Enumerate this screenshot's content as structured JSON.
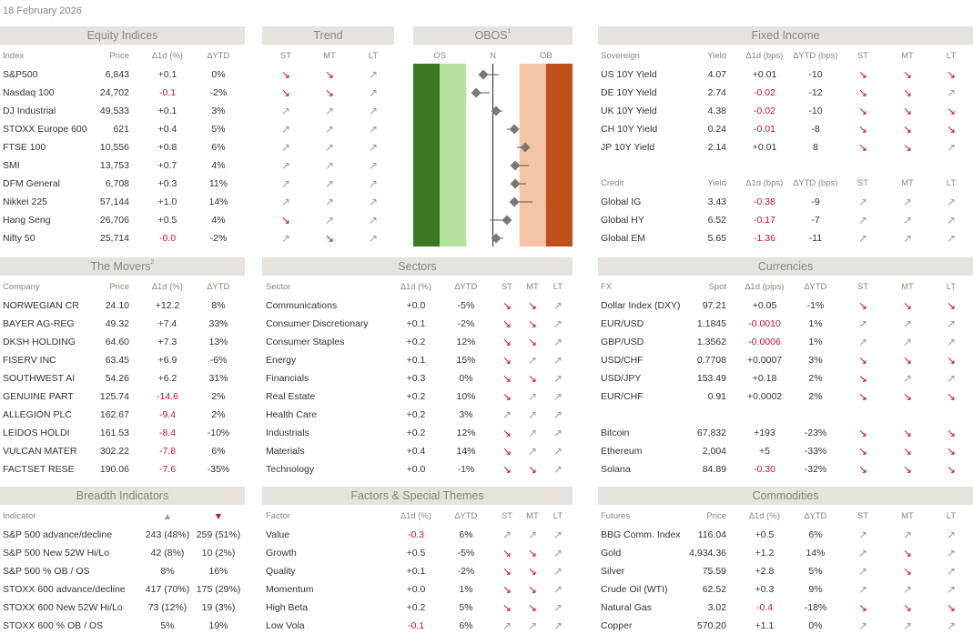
{
  "date": "18 February 2026",
  "equity": {
    "title": "Equity Indices",
    "columns": [
      "Index",
      "Price",
      "∆1d (%)",
      "∆YTD"
    ],
    "rows": [
      [
        "S&P500",
        "6,843",
        "+0.1",
        "0%"
      ],
      [
        "Nasdaq 100",
        "24,702",
        "-0.1",
        "-2%"
      ],
      [
        "DJ Industrial",
        "49,533",
        "+0.1",
        "3%"
      ],
      [
        "STOXX Europe 600",
        "621",
        "+0.4",
        "5%"
      ],
      [
        "FTSE 100",
        "10,556",
        "+0.8",
        "6%"
      ],
      [
        "SMI",
        "13,753",
        "+0.7",
        "4%"
      ],
      [
        "DFM General",
        "6,708",
        "+0.3",
        "11%"
      ],
      [
        "Nikkei 225",
        "57,144",
        "+1.0",
        "14%"
      ],
      [
        "Hang Seng",
        "26,706",
        "+0.5",
        "4%"
      ],
      [
        "Nifty 50",
        "25,714",
        "-0.0",
        "-2%"
      ]
    ]
  },
  "trend": {
    "title": "Trend",
    "columns": [
      "ST",
      "MT",
      "LT"
    ],
    "rows": [
      [
        "↘",
        "↘",
        "↗"
      ],
      [
        "↘",
        "↘",
        "↗"
      ],
      [
        "↗",
        "↗",
        "↗"
      ],
      [
        "↗",
        "↗",
        "↗"
      ],
      [
        "↗",
        "↗",
        "↗"
      ],
      [
        "↗",
        "↗",
        "↗"
      ],
      [
        "↗",
        "↗",
        "↗"
      ],
      [
        "↗",
        "↗",
        "↗"
      ],
      [
        "↘",
        "↗",
        "↗"
      ],
      [
        "↗",
        "↘",
        "↗"
      ]
    ]
  },
  "obos": {
    "title": "OBOS",
    "sup": "1",
    "labels": [
      "OS",
      "N",
      "OB"
    ],
    "xlim": [
      -3,
      3
    ],
    "bands": [
      -2,
      -1,
      1,
      2
    ],
    "values": [
      -0.36,
      -0.63,
      0.12,
      0.81,
      1.22,
      0.84,
      0.84,
      0.81,
      0.53,
      0.12
    ],
    "from": [
      0.22,
      -0.12,
      0.36,
      0.53,
      0.91,
      1.35,
      1.25,
      1.49,
      -0.12,
      0.39
    ]
  },
  "fixed_income": {
    "title": "Fixed Income",
    "columns": [
      "Sovereign",
      "Yield",
      "∆1d (bps)",
      "∆YTD (bps)",
      "ST",
      "MT",
      "LT"
    ],
    "rows": [
      [
        "US 10Y Yield",
        "4.07",
        "+0.01",
        "-10",
        "↘",
        "↘",
        "↘"
      ],
      [
        "DE 10Y Yield",
        "2.74",
        "-0.02",
        "-12",
        "↘",
        "↘",
        "↗"
      ],
      [
        "UK 10Y Yield",
        "4.38",
        "-0.02",
        "-10",
        "↘",
        "↘",
        "↘"
      ],
      [
        "CH 10Y Yield",
        "0.24",
        "-0.01",
        "-8",
        "↘",
        "↘",
        "↘"
      ],
      [
        "JP 10Y Yield",
        "2.14",
        "+0.01",
        "8",
        "↘",
        "↘",
        "↗"
      ]
    ],
    "credit_columns": [
      "Credit",
      "Yield",
      "∆1d (bps)",
      "∆YTD (bps)",
      "ST",
      "MT",
      "LT"
    ],
    "credit_rows": [
      [
        "Global IG",
        "3.43",
        "-0.38",
        "-9",
        "↗",
        "↗",
        "↗"
      ],
      [
        "Global HY",
        "6.52",
        "-0.17",
        "-7",
        "↗",
        "↗",
        "↗"
      ],
      [
        "Global EM",
        "5.65",
        "-1.36",
        "-11",
        "↗",
        "↗",
        "↗"
      ]
    ]
  },
  "movers": {
    "title": "The Movers",
    "sup": "2",
    "columns": [
      "Company",
      "Price",
      "∆1d (%)",
      "∆YTD"
    ],
    "rows": [
      [
        "NORWEGIAN CR",
        "24.10",
        "+12.2",
        "8%"
      ],
      [
        "BAYER AG-REG",
        "49.32",
        "+7.4",
        "33%"
      ],
      [
        "DKSH HOLDING",
        "64.60",
        "+7.3",
        "13%"
      ],
      [
        "FISERV INC",
        "63.45",
        "+6.9",
        "-6%"
      ],
      [
        "SOUTHWEST AI",
        "54.26",
        "+6.2",
        "31%"
      ],
      [
        "GENUINE PART",
        "125.74",
        "-14.6",
        "2%"
      ],
      [
        "ALLEGION PLC",
        "162.67",
        "-9.4",
        "2%"
      ],
      [
        "LEIDOS HOLDI",
        "161.53",
        "-8.4",
        "-10%"
      ],
      [
        "VULCAN MATER",
        "302.22",
        "-7.8",
        "6%"
      ],
      [
        "FACTSET RESE",
        "190.06",
        "-7.6",
        "-35%"
      ]
    ]
  },
  "sectors": {
    "title": "Sectors",
    "columns": [
      "Sector",
      "∆1d (%)",
      "∆YTD",
      "ST",
      "MT",
      "LT"
    ],
    "rows": [
      [
        "Communications",
        "+0.0",
        "-5%",
        "↘",
        "↘",
        "↗"
      ],
      [
        "Consumer Discretionary",
        "+0.1",
        "-2%",
        "↘",
        "↘",
        "↗"
      ],
      [
        "Consumer Staples",
        "+0.2",
        "12%",
        "↘",
        "↘",
        "↗"
      ],
      [
        "Energy",
        "+0.1",
        "15%",
        "↘",
        "↗",
        "↗"
      ],
      [
        "Financials",
        "+0.3",
        "0%",
        "↘",
        "↘",
        "↗"
      ],
      [
        "Real Estate",
        "+0.2",
        "10%",
        "↘",
        "↗",
        "↗"
      ],
      [
        "Health Care",
        "+0.2",
        "3%",
        "↗",
        "↗",
        "↗"
      ],
      [
        "Industrials",
        "+0.2",
        "12%",
        "↘",
        "↗",
        "↗"
      ],
      [
        "Materials",
        "+0.4",
        "14%",
        "↘",
        "↗",
        "↗"
      ],
      [
        "Technology",
        "+0.0",
        "-1%",
        "↘",
        "↘",
        "↗"
      ]
    ]
  },
  "currencies": {
    "title": "Currencies",
    "columns": [
      "FX",
      "Spot",
      "∆1d (pips)",
      "∆YTD",
      "ST",
      "MT",
      "LT"
    ],
    "rows": [
      [
        "Dollar Index (DXY)",
        "97.21",
        "+0.05",
        "-1%",
        "↘",
        "↘",
        "↘"
      ],
      [
        "EUR/USD",
        "1.1845",
        "-0.0010",
        "1%",
        "↗",
        "↗",
        "↗"
      ],
      [
        "GBP/USD",
        "1.3562",
        "-0.0006",
        "1%",
        "↗",
        "↗",
        "↗"
      ],
      [
        "USD/CHF",
        "0.7708",
        "+0.0007",
        "3%",
        "↘",
        "↘",
        "↘"
      ],
      [
        "USD/JPY",
        "153.49",
        "+0.18",
        "2%",
        "↘",
        "↗",
        "↗"
      ],
      [
        "EUR/CHF",
        "0.91",
        "+0.0002",
        "2%",
        "↘",
        "↘",
        "↘"
      ]
    ],
    "crypto_rows": [
      [
        "Bitcoin",
        "67,832",
        "+193",
        "-23%",
        "↘",
        "↘",
        "↘"
      ],
      [
        "Ethereum",
        "2,004",
        "+5",
        "-33%",
        "↘",
        "↘",
        "↘"
      ],
      [
        "Solana",
        "84.89",
        "-0.30",
        "-32%",
        "↘",
        "↘",
        "↘"
      ]
    ]
  },
  "breadth": {
    "title": "Breadth Indicators",
    "columns": [
      "Indicator",
      "▲",
      "▼"
    ],
    "rows": [
      [
        "S&P 500 advance/decline",
        "243 (48%)",
        "259 (51%)"
      ],
      [
        "S&P 500 New 52W Hi/Lo",
        "42 (8%)",
        "10 (2%)"
      ],
      [
        "S&P 500 % OB / OS",
        "8%",
        "16%"
      ],
      [
        "STOXX 600 advance/decline",
        "417 (70%)",
        "175 (29%)"
      ],
      [
        "STOXX 600 New 52W Hi/Lo",
        "73 (12%)",
        "19 (3%)"
      ],
      [
        "STOXX 600 % OB / OS",
        "5%",
        "19%"
      ]
    ]
  },
  "factors": {
    "title": "Factors & Special Themes",
    "columns": [
      "Factor",
      "∆1d (%)",
      "∆YTD",
      "ST",
      "MT",
      "LT"
    ],
    "rows": [
      [
        "Value",
        "-0.3",
        "6%",
        "↗",
        "↗",
        "↗"
      ],
      [
        "Growth",
        "+0.5",
        "-5%",
        "↘",
        "↘",
        "↗"
      ],
      [
        "Quality",
        "+0.1",
        "-2%",
        "↘",
        "↘",
        "↗"
      ],
      [
        "Momentum",
        "+0.0",
        "1%",
        "↘",
        "↘",
        "↗"
      ],
      [
        "High Beta",
        "+0.2",
        "5%",
        "↘",
        "↘",
        "↗"
      ],
      [
        "Low Vola",
        "-0.1",
        "6%",
        "↗",
        "↗",
        "↗"
      ]
    ]
  },
  "commodities": {
    "title": "Commodities",
    "columns": [
      "Futures",
      "Price",
      "∆1d (%)",
      "∆YTD",
      "ST",
      "MT",
      "LT"
    ],
    "rows": [
      [
        "BBG Comm. Index",
        "116.04",
        "+0.5",
        "6%",
        "↗",
        "↗",
        "↗"
      ],
      [
        "Gold",
        "4,934.36",
        "+1.2",
        "14%",
        "↗",
        "↘",
        "↗"
      ],
      [
        "Silver",
        "75.59",
        "+2.8",
        "5%",
        "↗",
        "↘",
        "↗"
      ],
      [
        "Crude Oil (WTI)",
        "62.52",
        "+0.3",
        "9%",
        "↗",
        "↗",
        "↗"
      ],
      [
        "Natural Gas",
        "3.02",
        "-0.4",
        "-18%",
        "↘",
        "↘",
        "↘"
      ],
      [
        "Copper",
        "570.20",
        "+1.1",
        "0%",
        "↗",
        "↗",
        "↗"
      ]
    ]
  }
}
